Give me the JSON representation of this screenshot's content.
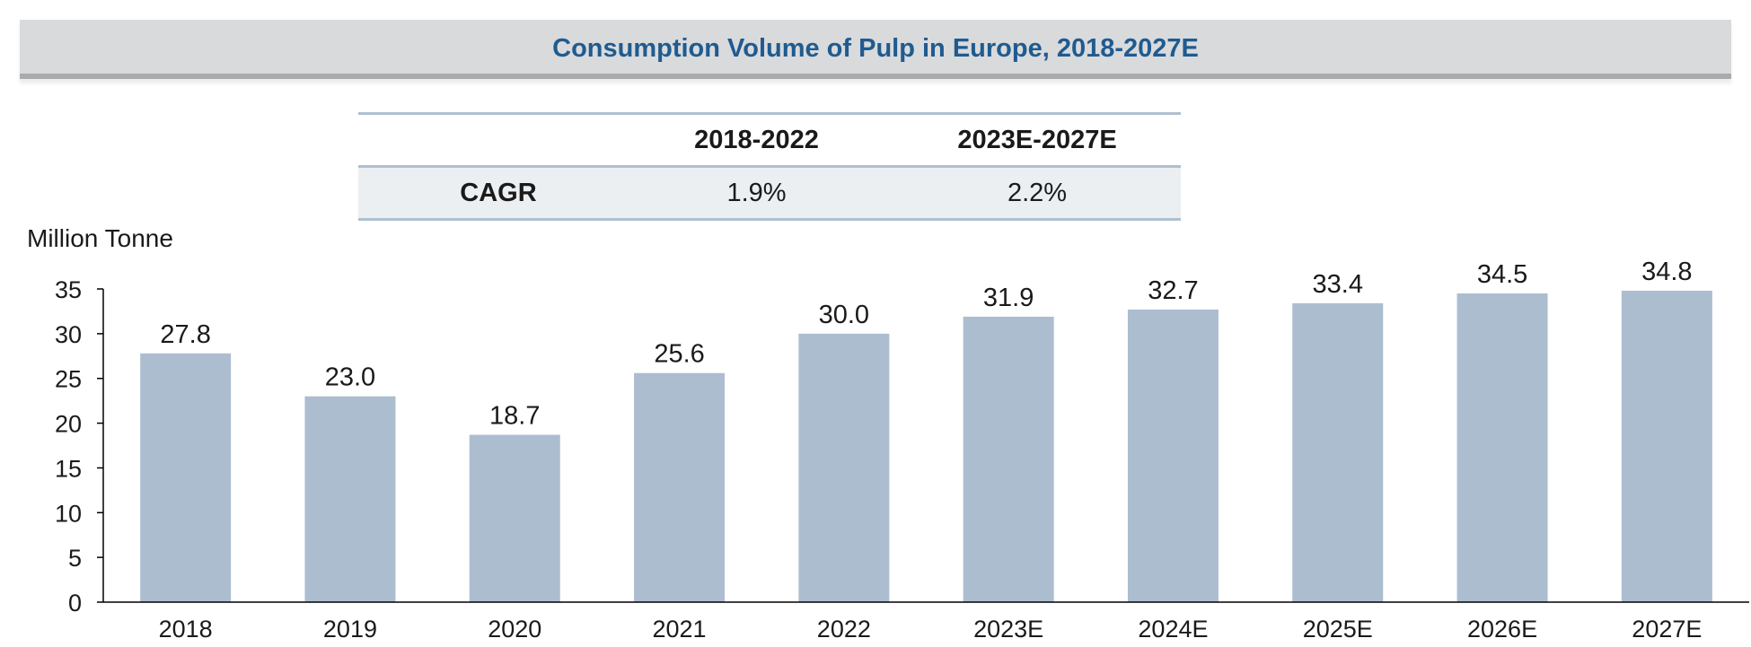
{
  "title": "Consumption Volume of Pulp in Europe, 2018-2027E",
  "cagr_table": {
    "headers": [
      "",
      "2018-2022",
      "2023E-2027E"
    ],
    "row_label": "CAGR",
    "values": [
      "1.9%",
      "2.2%"
    ]
  },
  "chart_data": {
    "type": "bar",
    "title": "Consumption Volume of Pulp in Europe, 2018-2027E",
    "ylabel": "Million Tonne",
    "xlabel": "",
    "categories": [
      "2018",
      "2019",
      "2020",
      "2021",
      "2022",
      "2023E",
      "2024E",
      "2025E",
      "2026E",
      "2027E"
    ],
    "values": [
      27.8,
      23.0,
      18.7,
      25.6,
      30.0,
      31.9,
      32.7,
      33.4,
      34.5,
      34.8
    ],
    "value_labels": [
      "27.8",
      "23.0",
      "18.7",
      "25.6",
      "30.0",
      "31.9",
      "32.7",
      "33.4",
      "34.5",
      "34.8"
    ],
    "ylim": [
      0,
      35
    ],
    "yticks": [
      0,
      5,
      10,
      15,
      20,
      25,
      30,
      35
    ],
    "grid": false,
    "legend": "none",
    "bar_color": "#adbdd0"
  }
}
